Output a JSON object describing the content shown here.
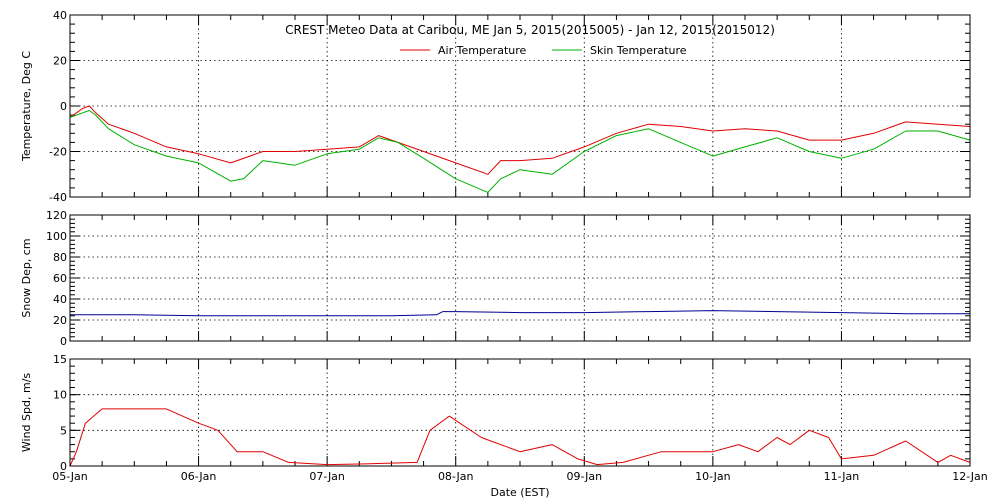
{
  "chart_data": {
    "type": "line",
    "title": "CREST Meteo Data at Caribou, ME   Jan  5, 2015(2015005) - Jan 12, 2015(2015012)",
    "xlabel": "Date (EST)",
    "x_tick_labels": [
      "05-Jan",
      "06-Jan",
      "07-Jan",
      "08-Jan",
      "09-Jan",
      "10-Jan",
      "11-Jan",
      "12-Jan"
    ],
    "x_unit": "days since 05-Jan 00:00 EST",
    "xlim": [
      0,
      7
    ],
    "grid": true,
    "legend_position": "top-center",
    "panels": [
      {
        "ylabel": "Temperature, Deg C",
        "ylim": [
          -40,
          40
        ],
        "yticks": [
          -40,
          -20,
          0,
          20,
          40
        ],
        "series": [
          {
            "name": "Air Temperature",
            "color": "#e00000",
            "x": [
              0,
              0.1,
              0.15,
              0.2,
              0.3,
              0.5,
              0.75,
              1,
              1.25,
              1.5,
              1.75,
              2,
              2.25,
              2.4,
              2.55,
              2.75,
              3,
              3.25,
              3.35,
              3.5,
              3.75,
              4,
              4.25,
              4.5,
              4.75,
              5,
              5.25,
              5.5,
              5.75,
              6,
              6.25,
              6.5,
              6.75,
              7
            ],
            "values": [
              -5,
              -1,
              0,
              -3,
              -8,
              -12,
              -18,
              -21,
              -25,
              -20,
              -20,
              -19,
              -18,
              -13,
              -16,
              -20,
              -25,
              -30,
              -24,
              -24,
              -23,
              -18,
              -12,
              -8,
              -9,
              -11,
              -10,
              -11,
              -15,
              -15,
              -12,
              -7,
              -8,
              -9
            ]
          },
          {
            "name": "Skin Temperature",
            "color": "#00b000",
            "x": [
              0,
              0.1,
              0.15,
              0.2,
              0.3,
              0.5,
              0.75,
              1,
              1.25,
              1.35,
              1.5,
              1.75,
              2,
              2.25,
              2.4,
              2.55,
              2.75,
              3,
              3.25,
              3.35,
              3.5,
              3.75,
              4,
              4.25,
              4.5,
              4.75,
              5,
              5.25,
              5.5,
              5.75,
              6,
              6.25,
              6.5,
              6.75,
              7
            ],
            "values": [
              -5,
              -3,
              -2,
              -4,
              -10,
              -17,
              -22,
              -25,
              -33,
              -32,
              -24,
              -26,
              -21,
              -19,
              -14,
              -16,
              -23,
              -32,
              -38,
              -32,
              -28,
              -30,
              -20,
              -13,
              -10,
              -16,
              -22,
              -18,
              -14,
              -20,
              -23,
              -19,
              -11,
              -11,
              -15
            ]
          }
        ]
      },
      {
        "ylabel": "Snow Dep, cm",
        "ylim": [
          0,
          120
        ],
        "yticks": [
          0,
          20,
          40,
          60,
          80,
          100,
          120
        ],
        "series": [
          {
            "name": "Snow Depth",
            "color": "#000090",
            "x": [
              0,
              0.5,
              1,
              1.5,
              2,
              2.5,
              2.85,
              2.9,
              3,
              3.5,
              4,
              4.5,
              5,
              5.5,
              6,
              6.5,
              7
            ],
            "values": [
              25,
              25,
              24,
              24,
              24,
              24,
              25,
              28,
              28,
              27,
              27,
              28,
              29,
              28,
              27,
              26,
              26
            ]
          }
        ]
      },
      {
        "ylabel": "Wind Spd, m/s",
        "ylim": [
          0,
          15
        ],
        "yticks": [
          0,
          5,
          10,
          15
        ],
        "series": [
          {
            "name": "Wind Speed",
            "color": "#e00000",
            "x": [
              0,
              0.05,
              0.12,
              0.25,
              0.5,
              0.75,
              1,
              1.15,
              1.3,
              1.5,
              1.7,
              2,
              2.3,
              2.5,
              2.7,
              2.8,
              2.95,
              3.2,
              3.5,
              3.75,
              3.95,
              4.1,
              4.3,
              4.6,
              4.9,
              5,
              5.2,
              5.35,
              5.5,
              5.6,
              5.75,
              5.9,
              6,
              6.25,
              6.5,
              6.75,
              6.85,
              7
            ],
            "values": [
              0,
              2,
              6,
              8,
              8,
              8,
              6,
              5,
              2,
              2,
              0.5,
              0.2,
              0.3,
              0.4,
              0.5,
              5,
              7,
              4,
              2,
              3,
              1,
              0.2,
              0.5,
              2,
              2,
              2,
              3,
              2,
              4,
              3,
              5,
              4,
              1,
              1.5,
              3.5,
              0.5,
              1.5,
              0.5
            ]
          }
        ]
      }
    ]
  }
}
